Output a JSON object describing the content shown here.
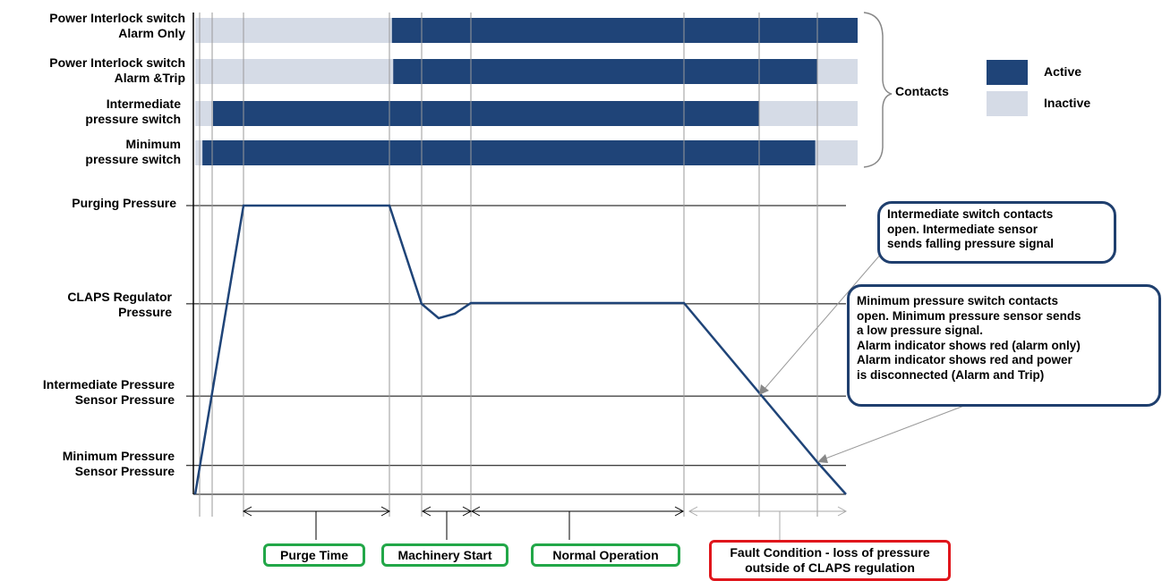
{
  "contacts": {
    "rows": [
      {
        "label_lines": [
          "Power Interlock switch",
          "Alarm Only"
        ],
        "active_from": 0.297,
        "active_to": 1.0
      },
      {
        "label_lines": [
          "Power Interlock switch",
          "Alarm &Trip"
        ],
        "active_from": 0.299,
        "active_to": 0.939
      },
      {
        "label_lines": [
          "Intermediate",
          "pressure switch"
        ],
        "active_from": 0.027,
        "active_to": 0.852
      },
      {
        "label_lines": [
          "Minimum",
          "pressure switch"
        ],
        "active_from": 0.011,
        "active_to": 0.936
      }
    ],
    "group_label": "Contacts"
  },
  "legend": {
    "active_label": "Active",
    "inactive_label": "Inactive"
  },
  "colors": {
    "active": "#1f4478",
    "inactive": "#d5dbe6",
    "curve": "#1f4478",
    "callout_border": "#1f3f6e",
    "phase_green": "#22a748",
    "phase_red": "#e0161c"
  },
  "pressure_levels": [
    {
      "lines": [
        "Purging Pressure"
      ],
      "fraction": 1.0
    },
    {
      "lines": [
        "CLAPS Regulator",
        "Pressure"
      ],
      "fraction": 0.66
    },
    {
      "lines": [
        "Intermediate Pressure",
        "Sensor Pressure"
      ],
      "fraction": 0.34
    },
    {
      "lines": [
        "Minimum Pressure",
        "Sensor Pressure"
      ],
      "fraction": 0.1
    },
    {
      "lines": [
        ""
      ],
      "fraction": 0.0
    }
  ],
  "callouts": [
    {
      "lines": [
        "Intermediate switch contacts",
        "open. Intermediate sensor",
        "sends falling pressure signal"
      ]
    },
    {
      "lines": [
        "Minimum pressure switch contacts",
        "open. Minimum pressure sensor sends",
        "a low pressure signal.",
        "Alarm indicator shows red (alarm only)",
        "Alarm indicator shows red and power",
        "is disconnected (Alarm and Trip)"
      ]
    }
  ],
  "phases": [
    {
      "label": "Purge Time"
    },
    {
      "label": "Machinery Start"
    },
    {
      "label": "Normal Operation"
    },
    {
      "label_lines": [
        "Fault Condition - loss of pressure",
        "outside of CLAPS regulation"
      ]
    }
  ]
}
